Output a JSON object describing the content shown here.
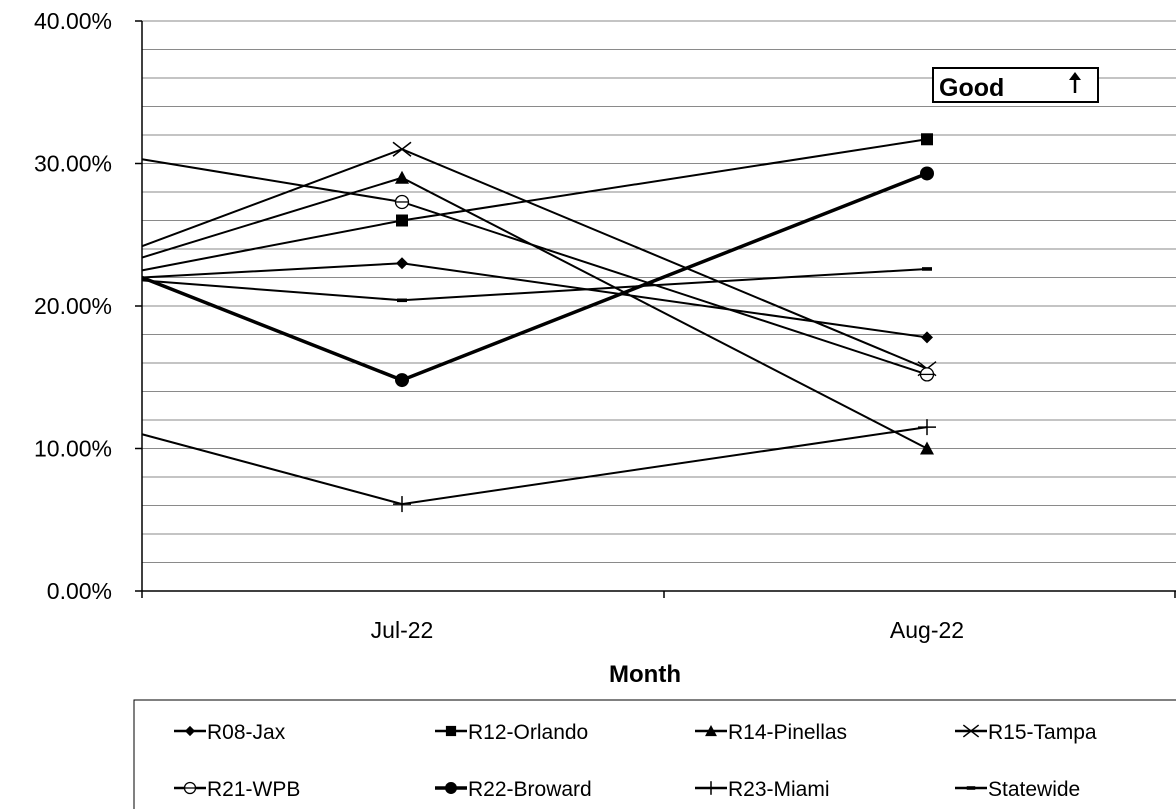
{
  "chart_data": {
    "type": "line",
    "title": "",
    "xlabel": "Month",
    "ylabel": "",
    "categories": [
      "Jul-22",
      "Aug-22"
    ],
    "ylim": [
      0,
      40
    ],
    "y_ticks": [
      {
        "value": 0,
        "label": "0.00%"
      },
      {
        "value": 10,
        "label": "10.00%"
      },
      {
        "value": 20,
        "label": "20.00%"
      },
      {
        "value": 30,
        "label": "30.00%"
      },
      {
        "value": 40,
        "label": "40.00%"
      }
    ],
    "grid": "horizontal, every 2%",
    "legend_position": "bottom",
    "annotation": {
      "text": "Good",
      "arrow": "up"
    },
    "series": [
      {
        "name": "R08-Jax",
        "marker": "diamond",
        "lead_in": 22.0,
        "values": [
          23.0,
          17.8
        ]
      },
      {
        "name": "R12-Orlando",
        "marker": "square",
        "lead_in": 22.5,
        "values": [
          26.0,
          31.7
        ]
      },
      {
        "name": "R14-Pinellas",
        "marker": "triangle",
        "lead_in": 23.4,
        "values": [
          29.0,
          10.0
        ]
      },
      {
        "name": "R15-Tampa",
        "marker": "x",
        "lead_in": 24.2,
        "values": [
          31.0,
          15.6
        ]
      },
      {
        "name": "R21-WPB",
        "marker": "circle-open",
        "lead_in": 30.3,
        "values": [
          27.3,
          15.2
        ]
      },
      {
        "name": "R22-Broward",
        "marker": "circle-filled",
        "lead_in": 22.0,
        "values": [
          14.8,
          29.3
        ]
      },
      {
        "name": "R23-Miami",
        "marker": "plus",
        "lead_in": 11.0,
        "values": [
          6.1,
          11.5
        ]
      },
      {
        "name": "Statewide",
        "marker": "dash",
        "lead_in": 21.8,
        "values": [
          20.4,
          22.6
        ]
      }
    ]
  }
}
